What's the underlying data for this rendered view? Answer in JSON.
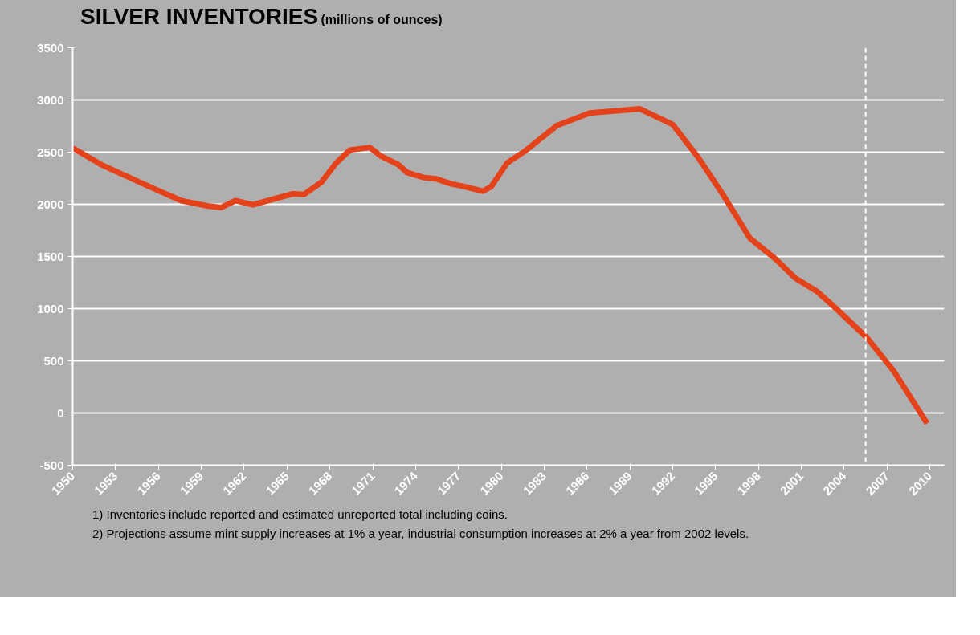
{
  "chart_data": {
    "type": "line",
    "title": "SILVER INVENTORIES",
    "subtitle": "(millions of ounces)",
    "x": [
      1950,
      1952,
      1955.2,
      1957.6,
      1959.4,
      1960.4,
      1961.4,
      1962.6,
      1965.4,
      1966.2,
      1967.4,
      1968.4,
      1969.4,
      1970.8,
      1971.6,
      1972.8,
      1973.4,
      1974.6,
      1975.4,
      1976.5,
      1977.4,
      1978.7,
      1979.3,
      1980.4,
      1981.7,
      1983.9,
      1986.2,
      1989.7,
      1992.0,
      1993.8,
      1995.5,
      1997.4,
      1999.2,
      2000.6,
      2002.1,
      2003.4,
      2005.6,
      2007.5,
      2009.8
    ],
    "series": [
      {
        "color": "#e4421a",
        "values": [
          2540,
          2380,
          2180,
          2035,
          1985,
          1970,
          2035,
          1995,
          2100,
          2095,
          2210,
          2390,
          2520,
          2545,
          2460,
          2380,
          2305,
          2255,
          2245,
          2195,
          2170,
          2125,
          2170,
          2395,
          2515,
          2755,
          2875,
          2915,
          2765,
          2445,
          2095,
          1675,
          1475,
          1290,
          1165,
          1005,
          720,
          395,
          -100
        ]
      }
    ],
    "xlim": [
      1950,
      2011
    ],
    "xticks": [
      1950,
      1953,
      1956,
      1959,
      1962,
      1965,
      1968,
      1971,
      1974,
      1977,
      1980,
      1983,
      1986,
      1989,
      1992,
      1995,
      1998,
      2001,
      2004,
      2007,
      2010
    ],
    "ylim": [
      -500,
      3500
    ],
    "yticks": [
      -500,
      0,
      500,
      1000,
      1500,
      2000,
      2500,
      3000,
      3500
    ],
    "grid": "y",
    "line_style": "solid",
    "ref_lines": [
      {
        "axis": "x",
        "value": 2005.5,
        "label": null,
        "color": "#ffffff",
        "line_style": "dashed"
      }
    ],
    "annotations": [
      "1) Inventories include reported and estimated unreported total including coins.",
      "2) Projections assume mint supply increases at 1% a year, industrial consumption increases at 2% a year from 2002 levels."
    ]
  }
}
